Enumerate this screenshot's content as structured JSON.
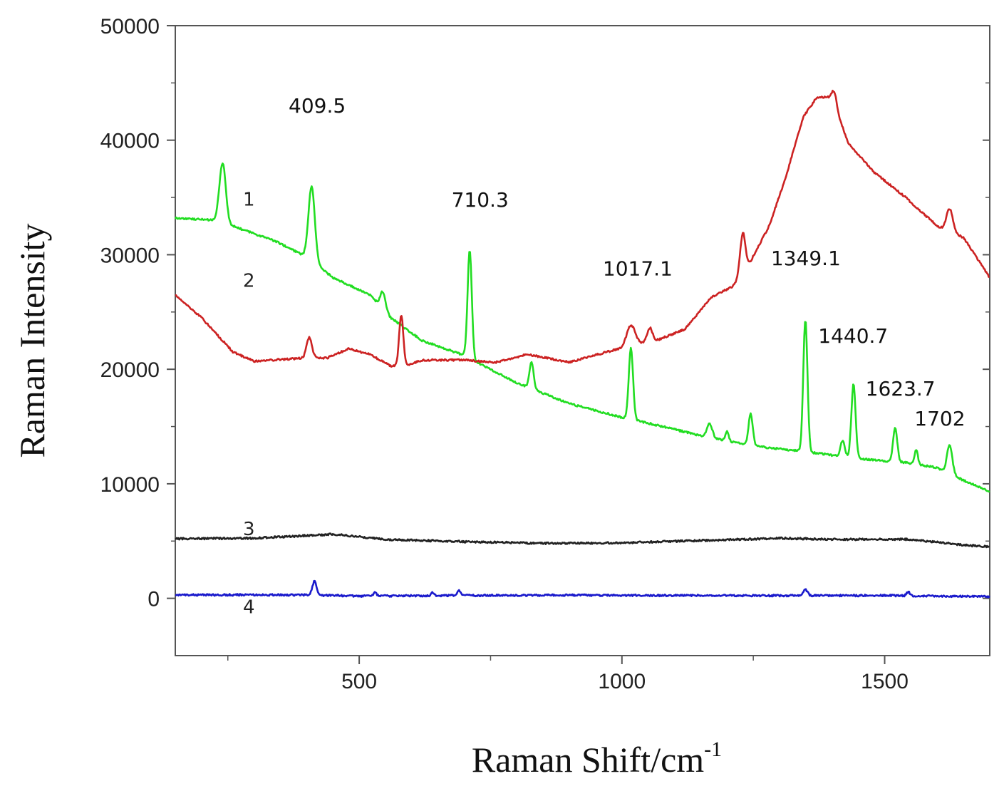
{
  "chart_data": {
    "type": "line",
    "title": "",
    "xlabel": "Raman Shift/cm",
    "xlabel_superscript": "-1",
    "ylabel": "Raman Intensity",
    "xlim": [
      150,
      1700
    ],
    "ylim": [
      -5000,
      50000
    ],
    "xticks": [
      500,
      1000,
      1500
    ],
    "yticks": [
      0,
      10000,
      20000,
      30000,
      40000,
      50000
    ],
    "xtick_labels": [
      "500",
      "1000",
      "1500"
    ],
    "ytick_labels": [
      "0",
      "10000",
      "20000",
      "30000",
      "40000",
      "50000"
    ],
    "grid": false,
    "colors": {
      "1": "#22dd22",
      "2": "#cc2222",
      "3": "#222222",
      "4": "#1a1acc",
      "axis": "#555555"
    },
    "series": [
      {
        "name": "1",
        "baseline": [
          [
            150,
            33200
          ],
          [
            230,
            33000
          ],
          [
            290,
            32000
          ],
          [
            340,
            31200
          ],
          [
            400,
            29800
          ],
          [
            450,
            28000
          ],
          [
            520,
            26500
          ],
          [
            560,
            24500
          ],
          [
            620,
            22500
          ],
          [
            700,
            21200
          ],
          [
            800,
            18800
          ],
          [
            900,
            17000
          ],
          [
            1000,
            15800
          ],
          [
            1050,
            15300
          ],
          [
            1150,
            14200
          ],
          [
            1250,
            13300
          ],
          [
            1350,
            12800
          ],
          [
            1450,
            12200
          ],
          [
            1550,
            11800
          ],
          [
            1600,
            11400
          ],
          [
            1650,
            10300
          ],
          [
            1700,
            9300
          ]
        ],
        "peaks": [
          [
            240,
            5200,
            6
          ],
          [
            409.5,
            6500,
            6
          ],
          [
            545,
            1500,
            5
          ],
          [
            710.3,
            9500,
            4
          ],
          [
            828,
            2300,
            4
          ],
          [
            1017.1,
            6300,
            4
          ],
          [
            1167,
            1200,
            5
          ],
          [
            1200,
            800,
            3
          ],
          [
            1245,
            2800,
            4
          ],
          [
            1349.1,
            11500,
            4
          ],
          [
            1420,
            1400,
            4
          ],
          [
            1440.7,
            6500,
            4
          ],
          [
            1520,
            3000,
            4
          ],
          [
            1560,
            1300,
            3
          ],
          [
            1623.7,
            2500,
            5
          ]
        ]
      },
      {
        "name": "2",
        "baseline": [
          [
            150,
            26500
          ],
          [
            200,
            24500
          ],
          [
            260,
            21500
          ],
          [
            300,
            20700
          ],
          [
            400,
            21000
          ],
          [
            440,
            21000
          ],
          [
            480,
            21800
          ],
          [
            520,
            21300
          ],
          [
            560,
            20300
          ],
          [
            580,
            20200
          ],
          [
            620,
            20800
          ],
          [
            700,
            20800
          ],
          [
            760,
            20600
          ],
          [
            820,
            21300
          ],
          [
            900,
            20600
          ],
          [
            970,
            21500
          ],
          [
            1030,
            22200
          ],
          [
            1070,
            22600
          ],
          [
            1120,
            23500
          ],
          [
            1170,
            26300
          ],
          [
            1210,
            27200
          ],
          [
            1240,
            29000
          ],
          [
            1280,
            32500
          ],
          [
            1310,
            36500
          ],
          [
            1345,
            42000
          ],
          [
            1370,
            43700
          ],
          [
            1400,
            43800
          ],
          [
            1430,
            39800
          ],
          [
            1480,
            37200
          ],
          [
            1540,
            35000
          ],
          [
            1600,
            32500
          ],
          [
            1650,
            31500
          ],
          [
            1700,
            28000
          ]
        ],
        "peaks": [
          [
            405,
            1800,
            5
          ],
          [
            580,
            4500,
            4
          ],
          [
            1017.1,
            1800,
            8
          ],
          [
            1053,
            1200,
            5
          ],
          [
            1230,
            3500,
            5
          ],
          [
            1405,
            1000,
            4
          ],
          [
            1623.7,
            2000,
            6
          ]
        ]
      },
      {
        "name": "3",
        "baseline": [
          [
            150,
            5200
          ],
          [
            300,
            5250
          ],
          [
            450,
            5600
          ],
          [
            550,
            5150
          ],
          [
            700,
            4950
          ],
          [
            850,
            4800
          ],
          [
            1000,
            4850
          ],
          [
            1150,
            5050
          ],
          [
            1300,
            5250
          ],
          [
            1400,
            5150
          ],
          [
            1550,
            5150
          ],
          [
            1650,
            4650
          ],
          [
            1700,
            4500
          ]
        ],
        "peaks": []
      },
      {
        "name": "4",
        "baseline": [
          [
            150,
            300
          ],
          [
            400,
            300
          ],
          [
            500,
            200
          ],
          [
            700,
            250
          ],
          [
            900,
            280
          ],
          [
            1100,
            250
          ],
          [
            1300,
            240
          ],
          [
            1500,
            250
          ],
          [
            1700,
            150
          ]
        ],
        "peaks": [
          [
            415,
            1200,
            4
          ],
          [
            530,
            300,
            3
          ],
          [
            640,
            250,
            3
          ],
          [
            690,
            400,
            3
          ],
          [
            1349.1,
            500,
            4
          ],
          [
            1545,
            350,
            3
          ]
        ]
      }
    ],
    "annotations": [
      {
        "text": "409.5",
        "x": 420,
        "y": 42400
      },
      {
        "text": "710.3",
        "x": 730,
        "y": 34200
      },
      {
        "text": "1017.1",
        "x": 1030,
        "y": 28200
      },
      {
        "text": "1349.1",
        "x": 1350,
        "y": 29100
      },
      {
        "text": "1440.7",
        "x": 1440,
        "y": 22300
      },
      {
        "text": "1623.7",
        "x": 1530,
        "y": 17700
      },
      {
        "text": "1702",
        "x": 1605,
        "y": 15100
      }
    ],
    "curve_labels": [
      {
        "text": "1",
        "x": 290,
        "y": 34300
      },
      {
        "text": "2",
        "x": 290,
        "y": 27200
      },
      {
        "text": "3",
        "x": 290,
        "y": 5500
      },
      {
        "text": "4",
        "x": 290,
        "y": -1300
      }
    ]
  }
}
